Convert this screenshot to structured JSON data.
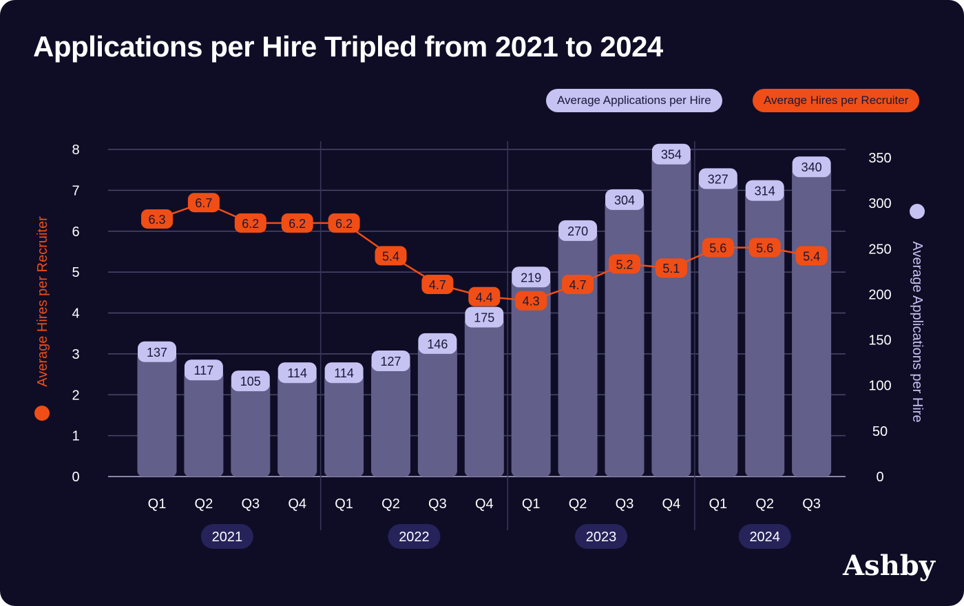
{
  "title": "Applications per Hire Tripled from 2021 to 2024",
  "brand": "Ashby",
  "colors": {
    "background": "#0f0d26",
    "bar": "#625f8a",
    "bar_label": "#c6c2f2",
    "line": "#f04e16"
  },
  "chart_data": {
    "type": "bar",
    "title": "Applications per Hire Tripled from 2021 to 2024",
    "categories": [
      "Q1",
      "Q2",
      "Q3",
      "Q4",
      "Q1",
      "Q2",
      "Q3",
      "Q4",
      "Q1",
      "Q2",
      "Q3",
      "Q4",
      "Q1",
      "Q2",
      "Q3"
    ],
    "groups": [
      {
        "label": "2021",
        "count": 4
      },
      {
        "label": "2022",
        "count": 4
      },
      {
        "label": "2023",
        "count": 4
      },
      {
        "label": "2024",
        "count": 3
      }
    ],
    "series": [
      {
        "name": "Average Applications per Hire",
        "type": "bar",
        "axis": "right",
        "values": [
          137,
          117,
          105,
          114,
          114,
          127,
          146,
          175,
          219,
          270,
          304,
          354,
          327,
          314,
          340
        ]
      },
      {
        "name": "Average Hires per Recruiter",
        "type": "line",
        "axis": "left",
        "values": [
          6.3,
          6.7,
          6.2,
          6.2,
          6.2,
          5.4,
          4.7,
          4.4,
          4.3,
          4.7,
          5.2,
          5.1,
          5.6,
          5.6,
          5.4
        ]
      }
    ],
    "ylabel_left": "Average Hires per Recruiter",
    "ylabel_right": "Average Applications per Hire",
    "ylim_left": [
      0,
      8
    ],
    "yticks_left": [
      0,
      1,
      2,
      3,
      4,
      5,
      6,
      7,
      8
    ],
    "ylim_right": [
      0,
      350
    ],
    "yticks_right": [
      0,
      50,
      100,
      150,
      200,
      250,
      300,
      350
    ],
    "grid": true,
    "legend": "top-right"
  }
}
